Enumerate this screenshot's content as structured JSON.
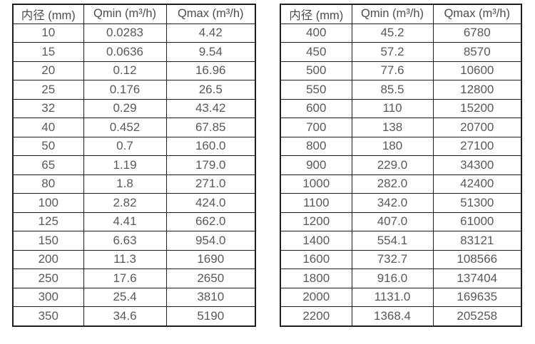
{
  "page": {
    "background_color": "#ffffff",
    "border_color": "#1f1f1f",
    "text_color": "#595959"
  },
  "tables": [
    {
      "name": "small-diameter-table",
      "headers": [
        "内径 (mm)",
        "Qmin (m³/h)",
        "Qmax (m³/h)"
      ],
      "rows": [
        [
          "10",
          "0.0283",
          "4.42"
        ],
        [
          "15",
          "0.0636",
          "9.54"
        ],
        [
          "20",
          "0.12",
          "16.96"
        ],
        [
          "25",
          "0.176",
          "26.5"
        ],
        [
          "32",
          "0.29",
          "43.42"
        ],
        [
          "40",
          "0.452",
          "67.85"
        ],
        [
          "50",
          "0.7",
          "160.0"
        ],
        [
          "65",
          "1.19",
          "179.0"
        ],
        [
          "80",
          "1.8",
          "271.0"
        ],
        [
          "100",
          "2.82",
          "424.0"
        ],
        [
          "125",
          "4.41",
          "662.0"
        ],
        [
          "150",
          "6.63",
          "954.0"
        ],
        [
          "200",
          "11.3",
          "1690"
        ],
        [
          "250",
          "17.6",
          "2650"
        ],
        [
          "300",
          "25.4",
          "3810"
        ],
        [
          "350",
          "34.6",
          "5190"
        ]
      ]
    },
    {
      "name": "large-diameter-table",
      "headers": [
        "内径 (mm)",
        "Qmin (m³/h)",
        "Qmax (m³/h)"
      ],
      "rows": [
        [
          "400",
          "45.2",
          "6780"
        ],
        [
          "450",
          "57.2",
          "8570"
        ],
        [
          "500",
          "77.6",
          "10600"
        ],
        [
          "550",
          "85.5",
          "12800"
        ],
        [
          "600",
          "110",
          "15200"
        ],
        [
          "700",
          "138",
          "20700"
        ],
        [
          "800",
          "180",
          "27100"
        ],
        [
          "900",
          "229.0",
          "34300"
        ],
        [
          "1000",
          "282.0",
          "42400"
        ],
        [
          "1100",
          "342.0",
          "51300"
        ],
        [
          "1200",
          "407.0",
          "61000"
        ],
        [
          "1400",
          "554.1",
          "83121"
        ],
        [
          "1600",
          "732.7",
          "108566"
        ],
        [
          "1800",
          "916.0",
          "137404"
        ],
        [
          "2000",
          "1131.0",
          "169635"
        ],
        [
          "2200",
          "1368.4",
          "205258"
        ]
      ]
    }
  ]
}
